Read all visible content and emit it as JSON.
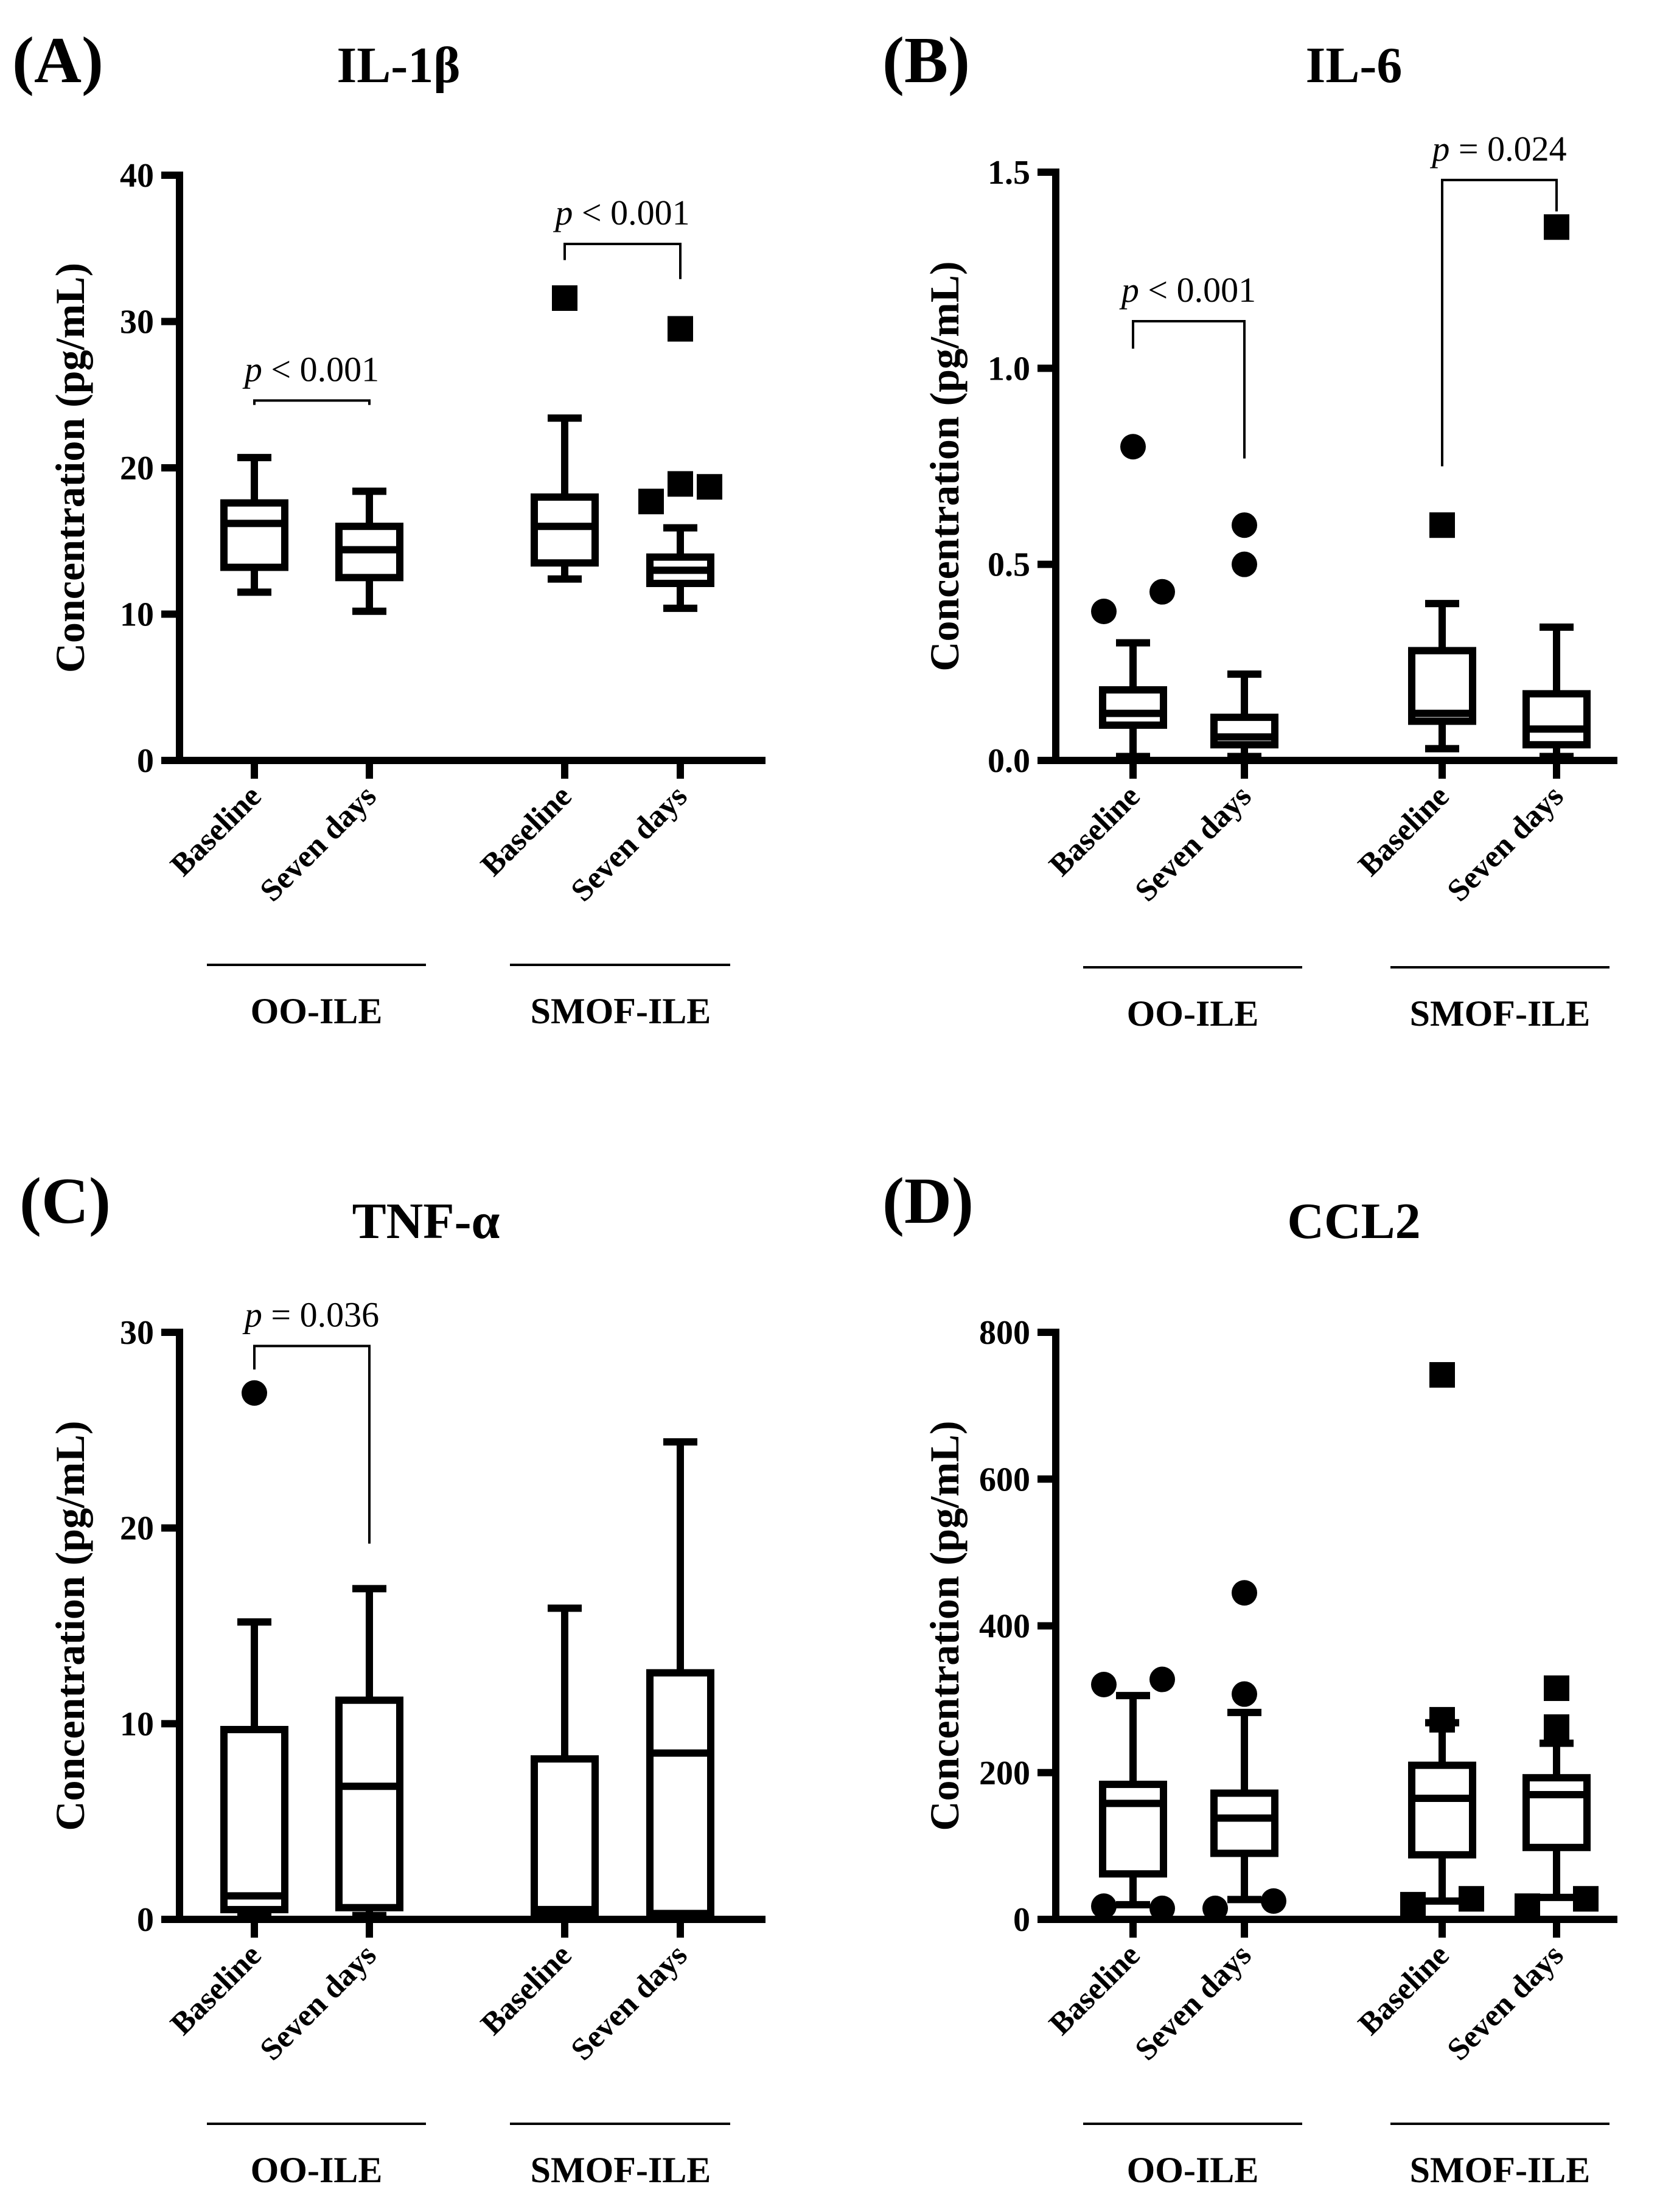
{
  "chart_data": [
    {
      "type": "box",
      "panel": "(A)",
      "title": "IL-1β",
      "ylabel": "Concentration (pg/mL)",
      "ylim": [
        0,
        40
      ],
      "yticks": [
        0,
        10,
        20,
        30,
        40
      ],
      "ytick_labels": [
        "0",
        "10",
        "20",
        "30",
        "40"
      ],
      "categories": [
        "Baseline",
        "Seven days",
        "Baseline",
        "Seven days"
      ],
      "groups": [
        {
          "label": "OO-ILE",
          "members": [
            0,
            1
          ]
        },
        {
          "label": "SMOF-ILE",
          "members": [
            2,
            3
          ]
        }
      ],
      "boxes": [
        {
          "group": "OO-ILE",
          "category": "Baseline",
          "whisker_low": 11.5,
          "q1": 13.2,
          "median": 16.2,
          "q3": 17.6,
          "whisker_high": 20.7,
          "outliers": [],
          "marker": "circle"
        },
        {
          "group": "OO-ILE",
          "category": "Seven days",
          "whisker_low": 10.2,
          "q1": 12.5,
          "median": 14.4,
          "q3": 16.0,
          "whisker_high": 18.4,
          "outliers": [],
          "marker": "circle"
        },
        {
          "group": "SMOF-ILE",
          "category": "Baseline",
          "whisker_low": 12.4,
          "q1": 13.5,
          "median": 16.0,
          "q3": 18.0,
          "whisker_high": 23.4,
          "outliers": [
            31.6
          ],
          "marker": "square"
        },
        {
          "group": "SMOF-ILE",
          "category": "Seven days",
          "whisker_low": 10.4,
          "q1": 12.1,
          "median": 13.0,
          "q3": 13.9,
          "whisker_high": 15.9,
          "outliers": [
            17.7,
            18.9,
            18.7,
            29.5
          ],
          "outlier_offsets": [
            -1,
            0,
            1,
            0
          ],
          "marker": "square"
        }
      ],
      "annotations": [
        {
          "p": "p",
          "rest": " < 0.001",
          "from": 0,
          "to": 1,
          "left_level": 24.3,
          "right_level": 24.3,
          "bar_level": 24.6
        },
        {
          "p": "p",
          "rest": " < 0.001",
          "from": 2,
          "to": 3,
          "left_level": 34.2,
          "right_level": 32.9,
          "bar_level": 35.3
        }
      ]
    },
    {
      "type": "box",
      "panel": "(B)",
      "title": "IL-6",
      "ylabel": "Concentration (pg/mL)",
      "ylim": [
        0,
        1.5
      ],
      "yticks": [
        0,
        0.5,
        1.0,
        1.5
      ],
      "ytick_labels": [
        "0.0",
        "0.5",
        "1.0",
        "1.5"
      ],
      "categories": [
        "Baseline",
        "Seven days",
        "Baseline",
        "Seven days"
      ],
      "groups": [
        {
          "label": "OO-ILE",
          "members": [
            0,
            1
          ]
        },
        {
          "label": "SMOF-ILE",
          "members": [
            2,
            3
          ]
        }
      ],
      "boxes": [
        {
          "group": "OO-ILE",
          "category": "Baseline",
          "whisker_low": 0.01,
          "q1": 0.09,
          "median": 0.12,
          "q3": 0.18,
          "whisker_high": 0.3,
          "outliers": [
            0.38,
            0.43,
            0.8
          ],
          "outlier_offsets": [
            -1,
            1,
            0
          ],
          "marker": "circle"
        },
        {
          "group": "OO-ILE",
          "category": "Seven days",
          "whisker_low": 0.01,
          "q1": 0.04,
          "median": 0.06,
          "q3": 0.11,
          "whisker_high": 0.22,
          "outliers": [
            0.5,
            0.6
          ],
          "marker": "circle"
        },
        {
          "group": "SMOF-ILE",
          "category": "Baseline",
          "whisker_low": 0.03,
          "q1": 0.1,
          "median": 0.12,
          "q3": 0.28,
          "whisker_high": 0.4,
          "outliers": [
            0.6
          ],
          "marker": "square"
        },
        {
          "group": "SMOF-ILE",
          "category": "Seven days",
          "whisker_low": 0.01,
          "q1": 0.04,
          "median": 0.08,
          "q3": 0.17,
          "whisker_high": 0.34,
          "outliers": [
            1.36
          ],
          "marker": "square"
        }
      ],
      "annotations": [
        {
          "p": "p",
          "rest": " < 0.001",
          "from": 0,
          "to": 1,
          "left_level": 1.05,
          "right_level": 0.77,
          "bar_level": 1.12
        },
        {
          "p": "p",
          "rest": " = 0.024",
          "from": 2,
          "to": 3,
          "left_level": 0.75,
          "right_level": 1.4,
          "bar_level": 1.48
        }
      ]
    },
    {
      "type": "box",
      "panel": "(C)",
      "title": "TNF-α",
      "ylabel": "Concentration (pg/mL)",
      "ylim": [
        0,
        30
      ],
      "yticks": [
        0,
        10,
        20,
        30
      ],
      "ytick_labels": [
        "0",
        "10",
        "20",
        "30"
      ],
      "categories": [
        "Baseline",
        "Seven days",
        "Baseline",
        "Seven days"
      ],
      "groups": [
        {
          "label": "OO-ILE",
          "members": [
            0,
            1
          ]
        },
        {
          "label": "SMOF-ILE",
          "members": [
            2,
            3
          ]
        }
      ],
      "boxes": [
        {
          "group": "OO-ILE",
          "category": "Baseline",
          "whisker_low": 0.2,
          "q1": 0.5,
          "median": 1.2,
          "q3": 9.7,
          "whisker_high": 15.2,
          "outliers": [
            26.9
          ],
          "marker": "circle"
        },
        {
          "group": "OO-ILE",
          "category": "Seven days",
          "whisker_low": 0.2,
          "q1": 0.6,
          "median": 6.8,
          "q3": 11.2,
          "whisker_high": 16.9,
          "outliers": [],
          "marker": "circle"
        },
        {
          "group": "SMOF-ILE",
          "category": "Baseline",
          "whisker_low": 0.2,
          "q1": 0.3,
          "median": 0.5,
          "q3": 8.2,
          "whisker_high": 15.9,
          "outliers": [],
          "marker": "square"
        },
        {
          "group": "SMOF-ILE",
          "category": "Seven days",
          "whisker_low": 0.2,
          "q1": 0.3,
          "median": 8.5,
          "q3": 12.6,
          "whisker_high": 24.4,
          "outliers": [],
          "marker": "square"
        }
      ],
      "annotations": [
        {
          "p": "p",
          "rest": " = 0.036",
          "from": 0,
          "to": 1,
          "left_level": 28.1,
          "right_level": 19.2,
          "bar_level": 29.3
        }
      ]
    },
    {
      "type": "box",
      "panel": "(D)",
      "title": "CCL2",
      "ylabel": "Concentration (pg/mL)",
      "ylim": [
        0,
        800
      ],
      "yticks": [
        0,
        200,
        400,
        600,
        800
      ],
      "ytick_labels": [
        "0",
        "200",
        "400",
        "600",
        "800"
      ],
      "categories": [
        "Baseline",
        "Seven days",
        "Baseline",
        "Seven days"
      ],
      "groups": [
        {
          "label": "OO-ILE",
          "members": [
            0,
            1
          ]
        },
        {
          "label": "SMOF-ILE",
          "members": [
            2,
            3
          ]
        }
      ],
      "boxes": [
        {
          "group": "OO-ILE",
          "category": "Baseline",
          "whisker_low": 20,
          "q1": 62,
          "median": 158,
          "q3": 184,
          "whisker_high": 305,
          "outliers": [
            18,
            15,
            320,
            327
          ],
          "outlier_offsets": [
            -1,
            1,
            -1,
            1
          ],
          "marker": "circle"
        },
        {
          "group": "OO-ILE",
          "category": "Seven days",
          "whisker_low": 27,
          "q1": 90,
          "median": 138,
          "q3": 172,
          "whisker_high": 282,
          "outliers": [
            15,
            25,
            307,
            445
          ],
          "outlier_offsets": [
            -1,
            1,
            0,
            0
          ],
          "marker": "circle"
        },
        {
          "group": "SMOF-ILE",
          "category": "Baseline",
          "whisker_low": 25,
          "q1": 88,
          "median": 165,
          "q3": 210,
          "whisker_high": 268,
          "outliers": [
            20,
            28,
            272,
            742
          ],
          "outlier_offsets": [
            -1,
            1,
            0,
            0
          ],
          "marker": "square"
        },
        {
          "group": "SMOF-ILE",
          "category": "Seven days",
          "whisker_low": 30,
          "q1": 98,
          "median": 170,
          "q3": 193,
          "whisker_high": 240,
          "outliers": [
            18,
            28,
            262,
            315
          ],
          "outlier_offsets": [
            -1,
            1,
            0,
            0
          ],
          "marker": "square"
        }
      ],
      "annotations": []
    }
  ]
}
